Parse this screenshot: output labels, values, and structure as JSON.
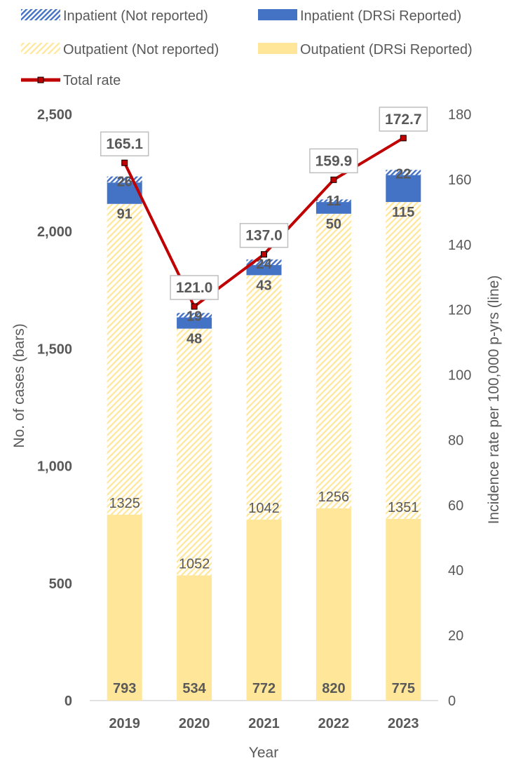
{
  "colors": {
    "inpatient_reported": "#4472C4",
    "inpatient_not_reported_hatch": "#4472C4",
    "outpatient_reported": "#FFE699",
    "outpatient_not_reported_hatch": "#FFE699",
    "total_rate_line": "#C00000",
    "text": "#595959",
    "axis": "#D9D9D9"
  },
  "chart_data": {
    "type": "bar",
    "subtype": "stacked bar with line on secondary axis",
    "categories": [
      "2019",
      "2020",
      "2021",
      "2022",
      "2023"
    ],
    "series": [
      {
        "name": "Outpatient (DRSi Reported)",
        "style": "solid",
        "values": [
          793,
          534,
          772,
          820,
          775
        ]
      },
      {
        "name": "Outpatient (Not reported)",
        "style": "hatched",
        "values": [
          1325,
          1052,
          1042,
          1256,
          1351
        ]
      },
      {
        "name": "Inpatient (DRSi Reported)",
        "style": "solid",
        "values": [
          91,
          48,
          43,
          50,
          115
        ]
      },
      {
        "name": "Inpatient (Not reported)",
        "style": "hatched",
        "values": [
          26,
          19,
          24,
          11,
          22
        ]
      }
    ],
    "line_series": {
      "name": "Total rate",
      "axis": "right",
      "values": [
        165.1,
        121.0,
        137.0,
        159.9,
        172.7
      ],
      "labels": [
        "165.1",
        "121.0",
        "137.0",
        "159.9",
        "172.7"
      ]
    },
    "legend_order": [
      "Inpatient (Not reported)",
      "Inpatient (DRSi Reported)",
      "Outpatient (Not reported)",
      "Outpatient (DRSi Reported)",
      "Total rate"
    ],
    "legend_position": "top",
    "xlabel": "Year",
    "ylabel": "No. of cases (bars)",
    "y2label": "Incidence rate per 100,000 p-yrs (line)",
    "ylim": [
      0,
      2500
    ],
    "y2lim": [
      0,
      180
    ],
    "yticks": [
      "0",
      "500",
      "1,000",
      "1,500",
      "2,000",
      "2,500"
    ],
    "y2ticks": [
      "0",
      "20",
      "40",
      "60",
      "80",
      "100",
      "120",
      "140",
      "160",
      "180"
    ],
    "grid": false
  }
}
